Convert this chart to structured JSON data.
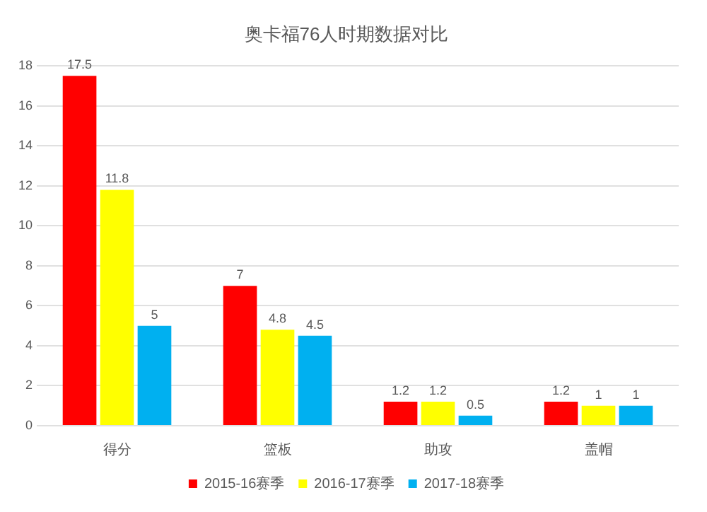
{
  "chart_data": {
    "type": "bar",
    "title": "奥卡福76人时期数据对比",
    "categories": [
      "得分",
      "篮板",
      "助攻",
      "盖帽"
    ],
    "series": [
      {
        "name": "2015-16赛季",
        "color": "#ff0000",
        "values": [
          17.5,
          7,
          1.2,
          1.2
        ]
      },
      {
        "name": "2016-17赛季",
        "color": "#ffff00",
        "values": [
          11.8,
          4.8,
          1.2,
          1
        ]
      },
      {
        "name": "2017-18赛季",
        "color": "#00b0f0",
        "values": [
          5,
          4.5,
          0.5,
          1
        ]
      }
    ],
    "ylim": [
      0,
      18
    ],
    "yticks": [
      0,
      2,
      4,
      6,
      8,
      10,
      12,
      14,
      16,
      18
    ],
    "grid": "y",
    "legend": "bottom",
    "data_labels": true
  }
}
